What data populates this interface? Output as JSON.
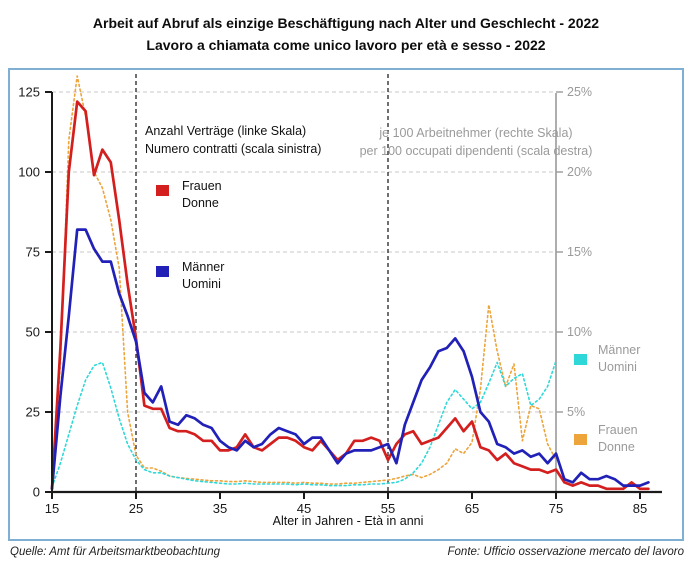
{
  "title": {
    "line1": "Arbeit auf Abruf als einzige Beschäftigung nach Alter und Geschlecht - 2022",
    "line2": "Lavoro a chiamata come unico lavoro per età e sesso - 2022"
  },
  "footer": {
    "source_left": "Quelle: Amt für Arbeitsmarktbeobachtung",
    "source_right": "Fonte: Ufficio osservazione mercato del lavoro"
  },
  "colors": {
    "frauen_left": "#d41f1f",
    "maenner_left": "#2121b8",
    "maenner_right": "#2fd8d8",
    "frauen_right": "#eda43b",
    "right_axis_gray": "#9a9a9a",
    "gridline": "#c9c9c9",
    "box_border": "#7fb0d4",
    "axis_black": "#1a1a1a"
  },
  "chart_data": {
    "type": "line",
    "title": "Arbeit auf Abruf als einzige Beschäftigung nach Alter und Geschlecht - 2022 / Lavoro a chiamata come unico lavoro per età e sesso - 2022",
    "xlabel": "Alter in Jahren - Età in anni",
    "x_ticks": [
      15,
      25,
      35,
      45,
      55,
      65,
      75,
      85
    ],
    "x_range": [
      15,
      86
    ],
    "grid": "horizontal-dashed",
    "reference_lines_x": [
      25,
      55
    ],
    "left_axis": {
      "legend_line1": "Anzahl Verträge (linke Skala)",
      "legend_line2": "Numero contratti (scala sinistra)",
      "ticks": [
        0,
        25,
        50,
        75,
        100,
        125
      ],
      "range": [
        0,
        125
      ]
    },
    "right_axis": {
      "legend_line1": "je 100 Arbeitnehmer (rechte Skala)",
      "legend_line2": "per 100 occupati dipendenti (scala destra)",
      "tick_labels": [
        "5%",
        "10%",
        "15%",
        "20%",
        "25%"
      ],
      "tick_values_percent": [
        5,
        10,
        15,
        20,
        25
      ],
      "range_percent": [
        0,
        25
      ],
      "axis_position_x": 75
    },
    "x": [
      15,
      16,
      17,
      18,
      19,
      20,
      21,
      22,
      23,
      24,
      25,
      26,
      27,
      28,
      29,
      30,
      31,
      32,
      33,
      34,
      35,
      36,
      37,
      38,
      39,
      40,
      41,
      42,
      43,
      44,
      45,
      46,
      47,
      48,
      49,
      50,
      51,
      52,
      53,
      54,
      55,
      56,
      57,
      58,
      59,
      60,
      61,
      62,
      63,
      64,
      65,
      66,
      67,
      68,
      69,
      70,
      71,
      72,
      73,
      74,
      75,
      76,
      77,
      78,
      79,
      80,
      81,
      82,
      83,
      84,
      85,
      86
    ],
    "series": [
      {
        "name_de": "Frauen",
        "name_it": "Donne",
        "axis": "left",
        "style": "solid",
        "color": "#d41f1f",
        "values": [
          1,
          45,
          100,
          122,
          119,
          99,
          107,
          103,
          85,
          65,
          48,
          27,
          26,
          26,
          20,
          19,
          19,
          18,
          16,
          16,
          13,
          13,
          14,
          18,
          14,
          13,
          15,
          17,
          17,
          16,
          14,
          13,
          16,
          13,
          10,
          12,
          16,
          16,
          17,
          16,
          10,
          15,
          18,
          19,
          15,
          16,
          17,
          20,
          23,
          19,
          22,
          14,
          13,
          10,
          12,
          9,
          8,
          7,
          7,
          6,
          7,
          3,
          2,
          3,
          2,
          2,
          1,
          1,
          1,
          3,
          1,
          1
        ]
      },
      {
        "name_de": "Männer",
        "name_it": "Uomini",
        "axis": "left",
        "style": "solid",
        "color": "#2121b8",
        "values": [
          1,
          30,
          55,
          82,
          82,
          76,
          72,
          72,
          62,
          55,
          47,
          31,
          28,
          33,
          22,
          21,
          24,
          23,
          21,
          20,
          16,
          14,
          13,
          16,
          14,
          15,
          18,
          20,
          19,
          18,
          15,
          17,
          17,
          13,
          9,
          12,
          13,
          13,
          13,
          14,
          15,
          9,
          21,
          28,
          35,
          39,
          44,
          45,
          48,
          44,
          36,
          25,
          22,
          15,
          14,
          12,
          13,
          11,
          12,
          9,
          12,
          4,
          3,
          6,
          4,
          4,
          5,
          4,
          2,
          2,
          2,
          3
        ]
      },
      {
        "name_de": "Männer",
        "name_it": "Uomini",
        "axis": "right",
        "style": "dotted",
        "color": "#2fd8d8",
        "values": [
          0.3,
          1.8,
          3.6,
          5.4,
          7.0,
          7.9,
          8.1,
          6.5,
          4.6,
          3.0,
          2.0,
          1.4,
          1.2,
          1.2,
          1.0,
          0.9,
          0.8,
          0.7,
          0.65,
          0.6,
          0.55,
          0.5,
          0.5,
          0.55,
          0.5,
          0.5,
          0.5,
          0.5,
          0.5,
          0.45,
          0.5,
          0.45,
          0.45,
          0.4,
          0.4,
          0.4,
          0.45,
          0.45,
          0.5,
          0.5,
          0.55,
          0.6,
          0.8,
          1.2,
          1.8,
          2.8,
          4.2,
          5.6,
          6.4,
          5.8,
          5.2,
          5.6,
          6.8,
          8.1,
          6.6,
          7.1,
          7.4,
          5.4,
          5.8,
          6.6,
          8.2,
          null,
          null,
          null,
          null,
          null,
          null,
          null,
          null,
          null,
          null,
          null
        ]
      },
      {
        "name_de": "Frauen",
        "name_it": "Donne",
        "axis": "right",
        "style": "dotted",
        "color": "#eda43b",
        "values": [
          0.5,
          8,
          22,
          26,
          23.5,
          20,
          19,
          17,
          14,
          5,
          2.3,
          1.5,
          1.5,
          1.3,
          1.0,
          0.9,
          0.85,
          0.8,
          0.75,
          0.7,
          0.7,
          0.65,
          0.65,
          0.7,
          0.65,
          0.6,
          0.6,
          0.6,
          0.6,
          0.55,
          0.6,
          0.55,
          0.55,
          0.5,
          0.5,
          0.55,
          0.55,
          0.6,
          0.65,
          0.7,
          0.75,
          0.85,
          1.0,
          1.1,
          0.9,
          1.1,
          1.4,
          1.8,
          2.7,
          2.4,
          3.1,
          6.4,
          11.7,
          8.8,
          6.6,
          8.0,
          3.2,
          5.4,
          5.2,
          3.0,
          2.0,
          null,
          null,
          null,
          null,
          null,
          null,
          null,
          null,
          null,
          null,
          null
        ]
      }
    ]
  }
}
